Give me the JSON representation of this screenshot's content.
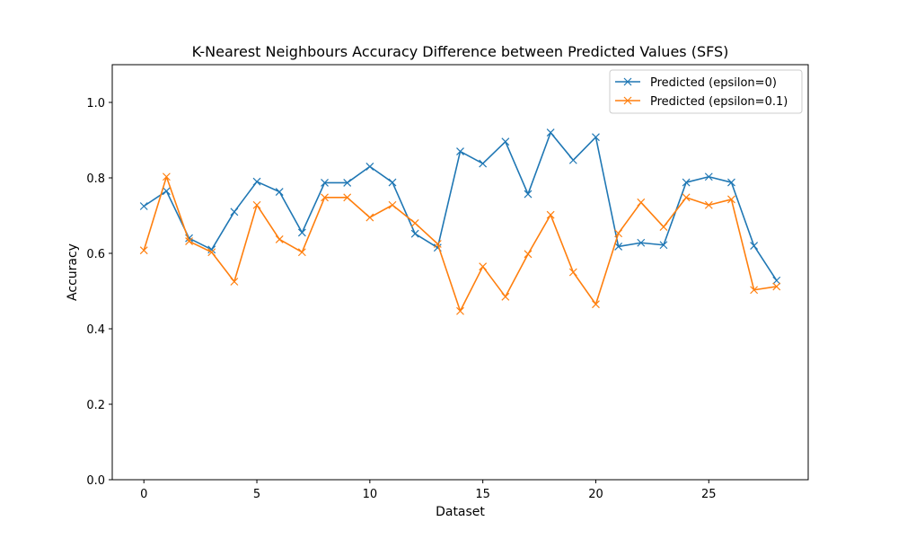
{
  "chart_data": {
    "type": "line",
    "title": "K-Nearest Neighbours Accuracy Difference between Predicted Values (SFS)",
    "xlabel": "Dataset",
    "ylabel": "Accuracy",
    "xlim": [
      -1.4,
      29.4
    ],
    "ylim": [
      0.0,
      1.1
    ],
    "xticks": [
      0,
      5,
      10,
      15,
      20,
      25
    ],
    "yticks": [
      0.0,
      0.2,
      0.4,
      0.6,
      0.8,
      1.0
    ],
    "legend_position": "top-right",
    "grid": false,
    "marker": "x",
    "x": [
      0,
      1,
      2,
      3,
      4,
      5,
      6,
      7,
      8,
      9,
      10,
      11,
      12,
      13,
      14,
      15,
      16,
      17,
      18,
      19,
      20,
      21,
      22,
      23,
      24,
      25,
      26,
      27,
      28
    ],
    "series": [
      {
        "name": "Predicted (epsilon=0)",
        "color": "#1f77b4",
        "values": [
          0.725,
          0.765,
          0.64,
          0.61,
          0.71,
          0.79,
          0.763,
          0.655,
          0.787,
          0.787,
          0.83,
          0.788,
          0.652,
          0.615,
          0.87,
          0.838,
          0.896,
          0.757,
          0.92,
          0.847,
          0.908,
          0.618,
          0.628,
          0.622,
          0.788,
          0.803,
          0.788,
          0.62,
          0.528
        ]
      },
      {
        "name": "Predicted (epsilon=0.1)",
        "color": "#ff7f0e",
        "values": [
          0.608,
          0.803,
          0.632,
          0.603,
          0.525,
          0.728,
          0.637,
          0.603,
          0.748,
          0.748,
          0.695,
          0.728,
          0.68,
          0.625,
          0.447,
          0.565,
          0.485,
          0.598,
          0.702,
          0.55,
          0.465,
          0.653,
          0.735,
          0.67,
          0.748,
          0.728,
          0.743,
          0.503,
          0.512
        ]
      }
    ]
  }
}
